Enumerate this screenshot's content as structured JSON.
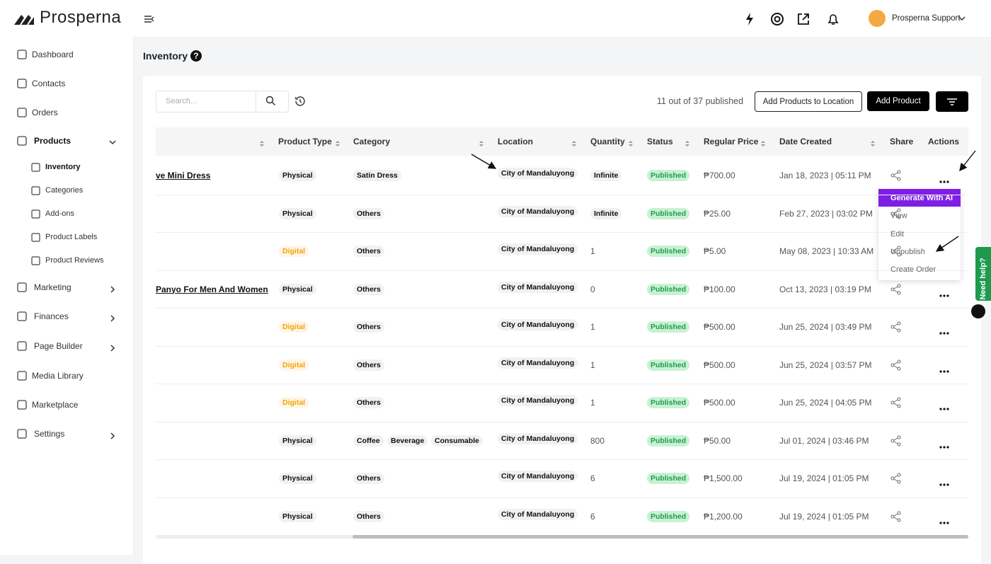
{
  "brand": "Prosperna",
  "user": {
    "name": "Prosperna Support"
  },
  "sidebar": {
    "items": [
      {
        "label": "Dashboard"
      },
      {
        "label": "Contacts"
      },
      {
        "label": "Orders"
      },
      {
        "label": "Products",
        "children": [
          "Inventory",
          "Categories",
          "Add-ons",
          "Product Labels",
          "Product Reviews"
        ]
      },
      {
        "label": "Marketing"
      },
      {
        "label": "Finances"
      },
      {
        "label": "Page Builder"
      },
      {
        "label": "Media Library"
      },
      {
        "label": "Marketplace"
      },
      {
        "label": "Settings"
      }
    ]
  },
  "page": {
    "title": "Inventory",
    "search_placeholder": "Search...",
    "published": "11 out of 37 published",
    "buttons": [
      "Add Products to Location",
      "Add Product"
    ]
  },
  "table": {
    "columns": [
      "Product Type",
      "Category",
      "Location",
      "Quantity",
      "Status",
      "Regular Price",
      "Date Created",
      "Share",
      "Actions"
    ],
    "rows": [
      {
        "name": "ve Mini Dress",
        "type": "Physical",
        "category": [
          "Satin Dress"
        ],
        "location": "City of Mandaluyong",
        "quantity": "Infinite",
        "status": "Published",
        "price": "₱700.00",
        "date": "Jan 18, 2023 | 05:11 PM"
      },
      {
        "type": "Physical",
        "category": [
          "Others"
        ],
        "location": "City of Mandaluyong",
        "quantity": "Infinite",
        "status": "Published",
        "price": "₱25.00",
        "date": "Feb 27, 2023 | 03:02 PM"
      },
      {
        "type": "Digital",
        "category": [
          "Others"
        ],
        "location": "City of Mandaluyong",
        "quantity": "1",
        "status": "Published",
        "price": "₱5.00",
        "date": "May 08, 2023 | 10:33 AM"
      },
      {
        "name": "Panyo For Men And Women",
        "type": "Physical",
        "category": [
          "Others"
        ],
        "location": "City of Mandaluyong",
        "quantity": "0",
        "status": "Published",
        "price": "₱100.00",
        "date": "Oct 13, 2023 | 03:19 PM"
      },
      {
        "type": "Digital",
        "category": [
          "Others"
        ],
        "location": "City of Mandaluyong",
        "quantity": "1",
        "status": "Published",
        "price": "₱500.00",
        "date": "Jun 25, 2024 | 03:49 PM"
      },
      {
        "type": "Digital",
        "category": [
          "Others"
        ],
        "location": "City of Mandaluyong",
        "quantity": "1",
        "status": "Published",
        "price": "₱500.00",
        "date": "Jun 25, 2024 | 03:57 PM"
      },
      {
        "type": "Digital",
        "category": [
          "Others"
        ],
        "location": "City of Mandaluyong",
        "quantity": "1",
        "status": "Published",
        "price": "₱500.00",
        "date": "Jun 25, 2024 | 04:05 PM"
      },
      {
        "type": "Physical",
        "category": [
          "Coffee",
          "Beverage",
          "Consumable"
        ],
        "location": "City of Mandaluyong",
        "quantity": "800",
        "status": "Published",
        "price": "₱50.00",
        "date": "Jul 01, 2024 | 03:46 PM"
      },
      {
        "type": "Physical",
        "category": [
          "Others"
        ],
        "location": "City of Mandaluyong",
        "quantity": "6",
        "status": "Published",
        "price": "₱1,500.00",
        "date": "Jul 19, 2024 | 01:05 PM"
      },
      {
        "type": "Physical",
        "category": [
          "Others"
        ],
        "location": "City of Mandaluyong",
        "quantity": "6",
        "status": "Published",
        "price": "₱1,200.00",
        "date": "Jul 19, 2024 | 01:05 PM"
      }
    ]
  },
  "menu": [
    "Generate With AI",
    "View",
    "Edit",
    "Unpublish",
    "Create Order"
  ],
  "help": "Need help?"
}
